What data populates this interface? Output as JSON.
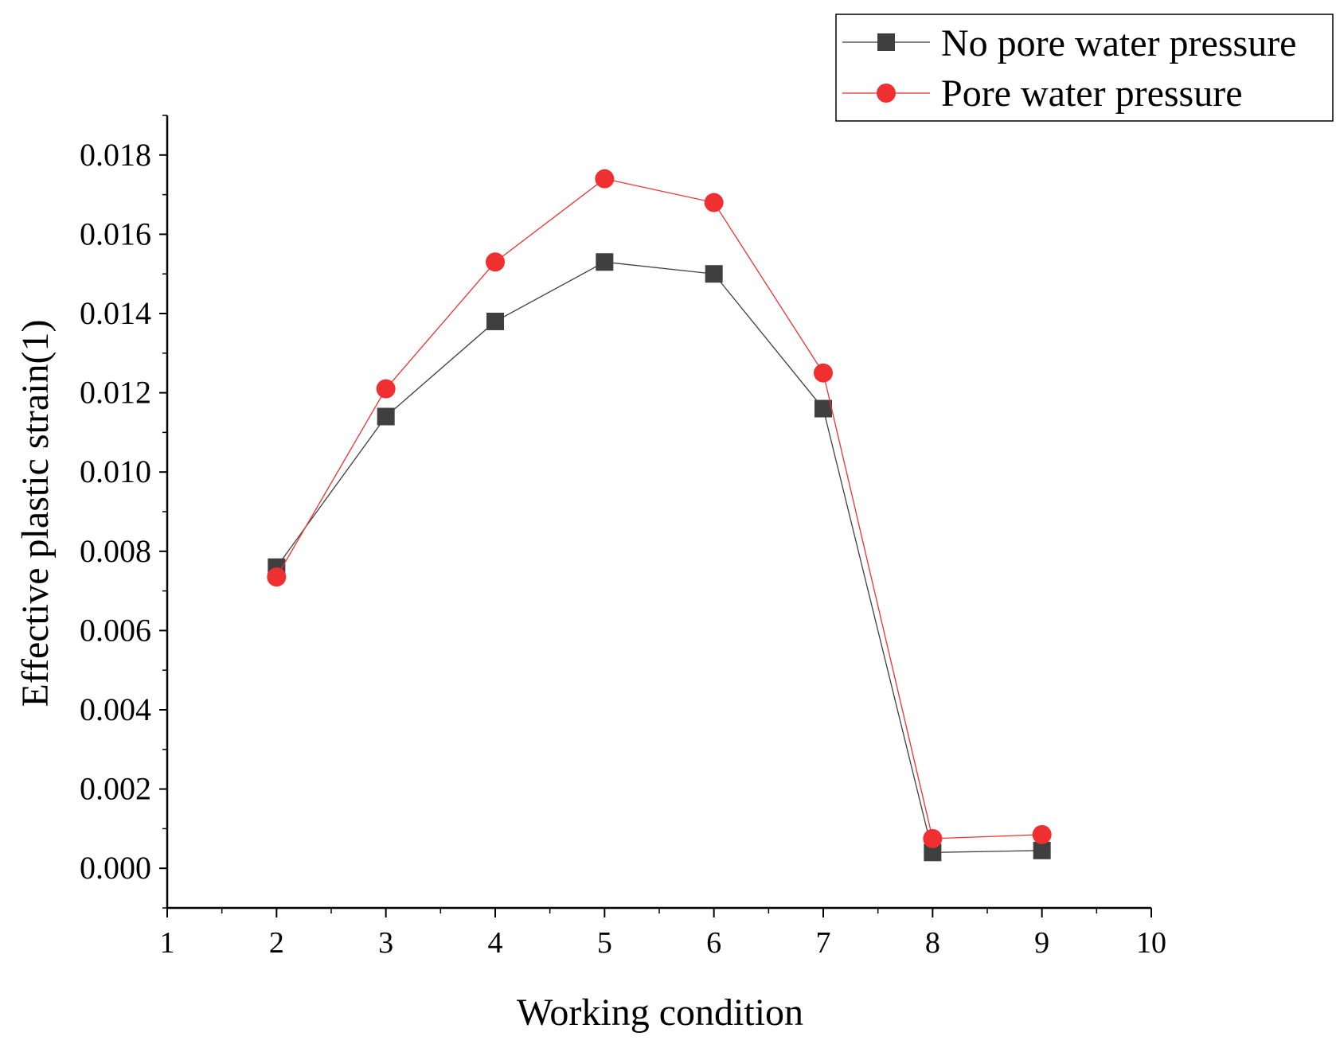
{
  "chart_data": {
    "type": "line",
    "xlabel": "Working condition",
    "ylabel": "Effective plastic strain(1)",
    "xlim": [
      1,
      10
    ],
    "ylim": [
      -0.001,
      0.019
    ],
    "x_ticks": [
      1,
      2,
      3,
      4,
      5,
      6,
      7,
      8,
      9,
      10
    ],
    "x_tick_labels": [
      "1",
      "2",
      "3",
      "4",
      "5",
      "6",
      "7",
      "8",
      "9",
      "10"
    ],
    "y_ticks": [
      0,
      0.002,
      0.004,
      0.006,
      0.008,
      0.01,
      0.012,
      0.014,
      0.016,
      0.018
    ],
    "y_tick_labels": [
      "0.000",
      "0.002",
      "0.004",
      "0.006",
      "0.008",
      "0.010",
      "0.012",
      "0.014",
      "0.016",
      "0.018"
    ],
    "legend_position": "top-right",
    "x": [
      2,
      3,
      4,
      5,
      6,
      7,
      8,
      9
    ],
    "series": [
      {
        "name": "No pore water pressure",
        "color": "#3f3f3f",
        "marker": "square",
        "values": [
          0.0076,
          0.0114,
          0.0138,
          0.0153,
          0.015,
          0.0116,
          0.0004,
          0.00045
        ]
      },
      {
        "name": "Pore water pressure",
        "color": "#f03030",
        "marker": "circle",
        "values": [
          0.00735,
          0.0121,
          0.0153,
          0.0174,
          0.0168,
          0.0125,
          0.00075,
          0.00085
        ]
      }
    ]
  }
}
